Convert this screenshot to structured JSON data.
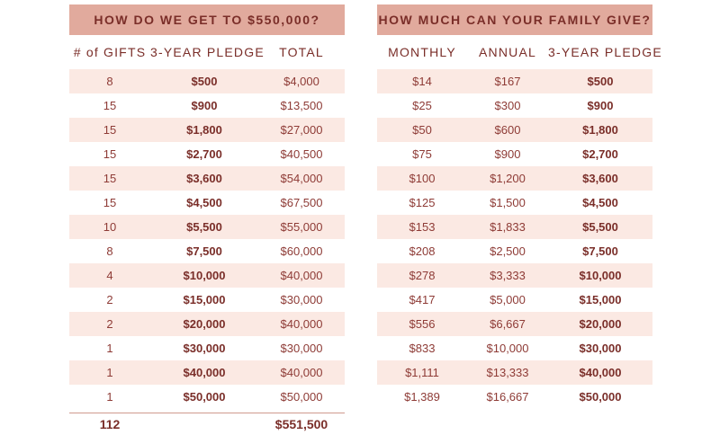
{
  "left_panel": {
    "title": "HOW DO WE GET TO $550,000?",
    "headers": [
      "# of GIFTS",
      "3-YEAR PLEDGE",
      "TOTAL"
    ],
    "rows": [
      [
        "8",
        "$500",
        "$4,000"
      ],
      [
        "15",
        "$900",
        "$13,500"
      ],
      [
        "15",
        "$1,800",
        "$27,000"
      ],
      [
        "15",
        "$2,700",
        "$40,500"
      ],
      [
        "15",
        "$3,600",
        "$54,000"
      ],
      [
        "15",
        "$4,500",
        "$67,500"
      ],
      [
        "10",
        "$5,500",
        "$55,000"
      ],
      [
        "8",
        "$7,500",
        "$60,000"
      ],
      [
        "4",
        "$10,000",
        "$40,000"
      ],
      [
        "2",
        "$15,000",
        "$30,000"
      ],
      [
        "2",
        "$20,000",
        "$40,000"
      ],
      [
        "1",
        "$30,000",
        "$30,000"
      ],
      [
        "1",
        "$40,000",
        "$40,000"
      ],
      [
        "1",
        "$50,000",
        "$50,000"
      ]
    ],
    "totals": {
      "gifts": "112",
      "total": "$551,500"
    }
  },
  "right_panel": {
    "title": "HOW MUCH CAN YOUR FAMILY GIVE?",
    "headers": [
      "MONTHLY",
      "ANNUAL",
      "3-YEAR PLEDGE"
    ],
    "rows": [
      [
        "$14",
        "$167",
        "$500"
      ],
      [
        "$25",
        "$300",
        "$900"
      ],
      [
        "$50",
        "$600",
        "$1,800"
      ],
      [
        "$75",
        "$900",
        "$2,700"
      ],
      [
        "$100",
        "$1,200",
        "$3,600"
      ],
      [
        "$125",
        "$1,500",
        "$4,500"
      ],
      [
        "$153",
        "$1,833",
        "$5,500"
      ],
      [
        "$208",
        "$2,500",
        "$7,500"
      ],
      [
        "$278",
        "$3,333",
        "$10,000"
      ],
      [
        "$417",
        "$5,000",
        "$15,000"
      ],
      [
        "$556",
        "$6,667",
        "$20,000"
      ],
      [
        "$833",
        "$10,000",
        "$30,000"
      ],
      [
        "$1,111",
        "$13,333",
        "$40,000"
      ],
      [
        "$1,389",
        "$16,667",
        "$50,000"
      ]
    ]
  },
  "colors": {
    "header_bg": "#e1aa9d",
    "row_stripe": "#fbe9e3",
    "text": "#8e3b36",
    "text_dark": "#7a2e29"
  }
}
